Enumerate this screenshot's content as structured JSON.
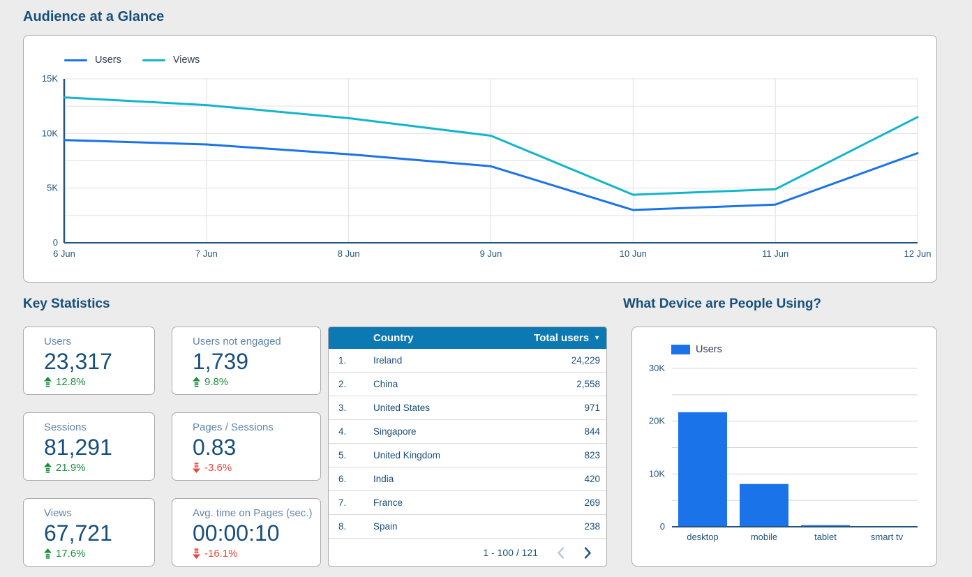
{
  "sections": {
    "audience": {
      "title": "Audience at a Glance"
    },
    "key_stats": {
      "title": "Key Statistics"
    },
    "devices": {
      "title": "What Device are People Using?"
    }
  },
  "colors": {
    "users_line": "#1a73e8",
    "views_line": "#12b5cb",
    "bar_fill": "#1a73e8",
    "positive": "#1e8e3e",
    "negative": "#e8463c",
    "table_header_bg": "#0c79b2",
    "heading_text": "#174f7c",
    "axis_text": "#24557f",
    "page_bg": "#ececec"
  },
  "icons": {
    "sort_desc": "▼",
    "trend_up": "striped-arrow-up",
    "trend_down": "striped-arrow-down",
    "prev": "chevron-left",
    "next": "chevron-right"
  },
  "chart_data": [
    {
      "id": "audience-line",
      "type": "line",
      "title": "Audience at a Glance",
      "x": [
        "6 Jun",
        "7 Jun",
        "8 Jun",
        "9 Jun",
        "10 Jun",
        "11 Jun",
        "12 Jun"
      ],
      "series": [
        {
          "name": "Users",
          "color": "#1a73e8",
          "values": [
            9400,
            9000,
            8100,
            7000,
            3000,
            3500,
            8200
          ]
        },
        {
          "name": "Views",
          "color": "#12b5cb",
          "values": [
            13300,
            12600,
            11400,
            9800,
            4400,
            4900,
            11500
          ]
        }
      ],
      "xlabel": "",
      "ylabel": "",
      "ylim": [
        0,
        15000
      ],
      "yticks": [
        0,
        5000,
        10000,
        15000
      ],
      "ytick_labels": [
        "0",
        "5K",
        "10K",
        "15K"
      ],
      "grid_step": 2500,
      "grid": true,
      "legend_position": "top-left"
    },
    {
      "id": "devices-bar",
      "type": "bar",
      "title": "What Device are People Using?",
      "categories": [
        "desktop",
        "mobile",
        "tablet",
        "smart tv"
      ],
      "series": [
        {
          "name": "Users",
          "color": "#1a73e8",
          "values": [
            21700,
            8100,
            300,
            30
          ]
        }
      ],
      "xlabel": "",
      "ylabel": "",
      "ylim": [
        0,
        30000
      ],
      "yticks": [
        0,
        10000,
        20000,
        30000
      ],
      "ytick_labels": [
        "0",
        "10K",
        "20K",
        "30K"
      ],
      "grid_step": 5000,
      "grid": true,
      "legend_position": "top-left"
    }
  ],
  "stats": {
    "cards": [
      {
        "label": "Users",
        "value": "23,317",
        "delta": "12.8%",
        "trend": "up"
      },
      {
        "label": "Users not engaged",
        "value": "1,739",
        "delta": "9.8%",
        "trend": "up"
      },
      {
        "label": "Sessions",
        "value": "81,291",
        "delta": "21.9%",
        "trend": "up"
      },
      {
        "label": "Pages / Sessions",
        "value": "0.83",
        "delta": "-3.6%",
        "trend": "down"
      },
      {
        "label": "Views",
        "value": "67,721",
        "delta": "17.6%",
        "trend": "up"
      },
      {
        "label": "Avg. time on Pages (sec.)",
        "value": "00:00:10",
        "delta": "-16.1%",
        "trend": "down"
      }
    ]
  },
  "table": {
    "columns": [
      "Country",
      "Total users"
    ],
    "sort": {
      "column": "Total users",
      "direction": "desc"
    },
    "rows": [
      {
        "rank": "1.",
        "country": "Ireland",
        "value": "24,229"
      },
      {
        "rank": "2.",
        "country": "China",
        "value": "2,558"
      },
      {
        "rank": "3.",
        "country": "United States",
        "value": "971"
      },
      {
        "rank": "4.",
        "country": "Singapore",
        "value": "844"
      },
      {
        "rank": "5.",
        "country": "United Kingdom",
        "value": "823"
      },
      {
        "rank": "6.",
        "country": "India",
        "value": "420"
      },
      {
        "rank": "7.",
        "country": "France",
        "value": "269"
      },
      {
        "rank": "8.",
        "country": "Spain",
        "value": "238"
      }
    ],
    "pagination": {
      "range": "1 - 100 / 121"
    }
  }
}
